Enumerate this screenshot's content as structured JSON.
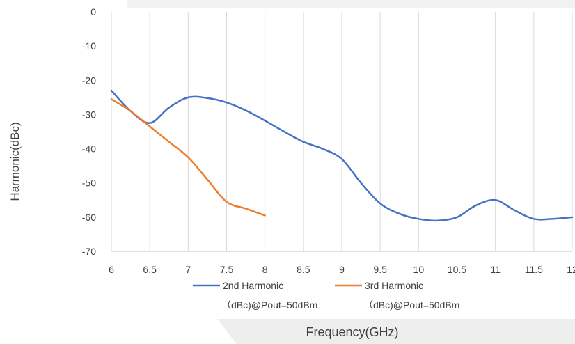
{
  "chart_data": {
    "type": "line",
    "title": "",
    "xlabel": "Frequency(GHz)",
    "ylabel": "Harmonic(dBc)",
    "xlim": [
      6,
      12
    ],
    "ylim": [
      -70,
      0
    ],
    "xticks": [
      "6",
      "6.5",
      "7",
      "7.5",
      "8",
      "8.5",
      "9",
      "9.5",
      "10",
      "10.5",
      "11",
      "11.5",
      "12"
    ],
    "yticks": [
      "0",
      "-10",
      "-20",
      "-30",
      "-40",
      "-50",
      "-60",
      "-70"
    ],
    "grid": "vertical",
    "legend": "bottom",
    "series": [
      {
        "name_line1": "2nd Harmonic",
        "name_line2": "（dBc)@Pout=50dBm",
        "color": "#4472C4",
        "x": [
          6,
          6.25,
          6.5,
          6.75,
          7,
          7.25,
          7.5,
          7.75,
          8,
          8.25,
          8.5,
          8.75,
          9,
          9.25,
          9.5,
          9.75,
          10,
          10.25,
          10.5,
          10.75,
          11,
          11.25,
          11.5,
          11.75,
          12
        ],
        "y": [
          -23,
          -29,
          -32.5,
          -28,
          -25,
          -25.2,
          -26.5,
          -28.8,
          -31.8,
          -35,
          -38,
          -40,
          -43,
          -50,
          -56,
          -59,
          -60.5,
          -61,
          -60,
          -56.5,
          -55,
          -58,
          -60.5,
          -60.5,
          -60
        ]
      },
      {
        "name_line1": "3rd Harmonic",
        "name_line2": "（dBc)@Pout=50dBm",
        "color": "#ED7D31",
        "x": [
          6,
          6.25,
          6.5,
          6.75,
          7,
          7.25,
          7.5,
          7.75,
          8
        ],
        "y": [
          -25.5,
          -29,
          -33.5,
          -38,
          -42.5,
          -49,
          -55.5,
          -57.5,
          -59.5
        ]
      }
    ]
  }
}
